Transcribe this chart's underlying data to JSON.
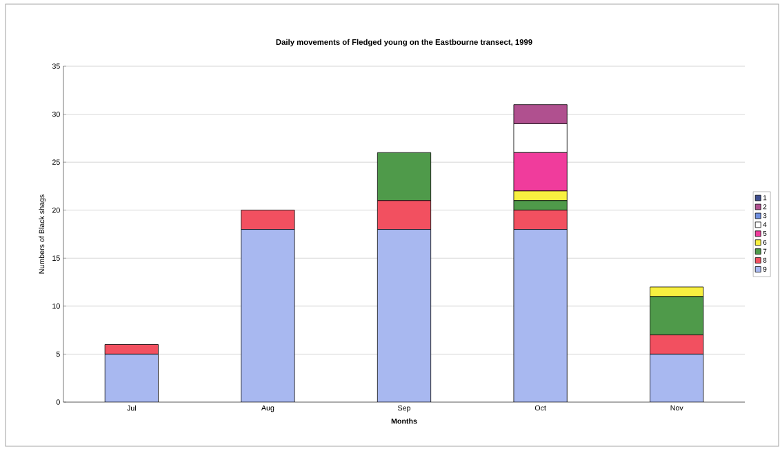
{
  "chart_data": {
    "type": "bar",
    "stacked": true,
    "title": "Daily movements of Fledged young on the Eastbourne transect, 1999",
    "xlabel": "Months",
    "ylabel": "Numbers of Black shags",
    "categories": [
      "Jul",
      "Aug",
      "Sep",
      "Oct",
      "Nov"
    ],
    "series": [
      {
        "name": "9",
        "color": "#a8b8f0",
        "values": [
          5,
          18,
          18,
          18,
          5
        ]
      },
      {
        "name": "8",
        "color": "#f25060",
        "values": [
          1,
          2,
          3,
          2,
          2
        ]
      },
      {
        "name": "7",
        "color": "#4f9a4a",
        "values": [
          null,
          null,
          5,
          1,
          4
        ]
      },
      {
        "name": "6",
        "color": "#f8f040",
        "values": [
          null,
          null,
          null,
          1,
          1
        ]
      },
      {
        "name": "5",
        "color": "#f03c9c",
        "values": [
          null,
          null,
          null,
          4,
          null
        ]
      },
      {
        "name": "4",
        "color": "#ffffff",
        "values": [
          null,
          null,
          null,
          3,
          null
        ]
      },
      {
        "name": "3",
        "color": "#6f8fdf",
        "values": [
          null,
          null,
          null,
          null,
          null
        ]
      },
      {
        "name": "2",
        "color": "#b0508f",
        "values": [
          null,
          null,
          null,
          2,
          null
        ]
      },
      {
        "name": "1",
        "color": "#3f4f8f",
        "values": [
          null,
          null,
          null,
          null,
          null
        ]
      }
    ],
    "ylim": [
      0,
      35
    ],
    "yticks": [
      0,
      5,
      10,
      15,
      20,
      25,
      30,
      35
    ],
    "grid": "y",
    "legend": "right"
  }
}
